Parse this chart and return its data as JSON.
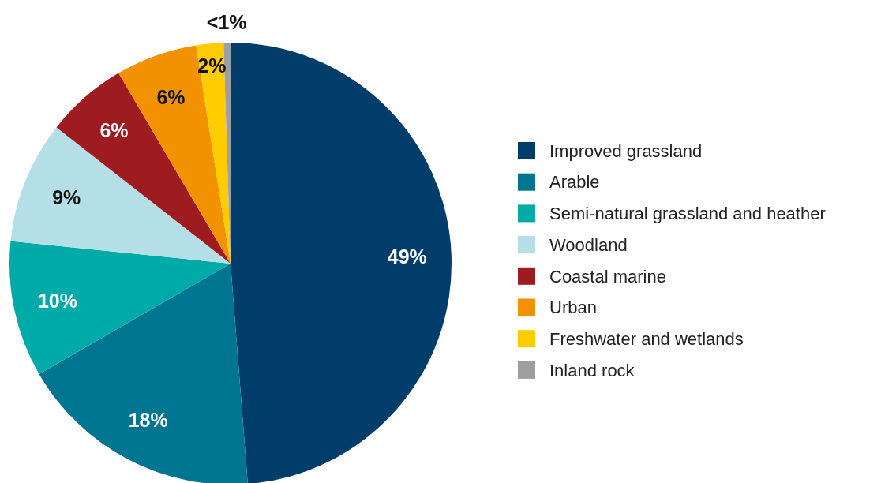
{
  "chart_data": {
    "type": "pie",
    "categories": [
      "Improved grassland",
      "Arable",
      "Semi-natural grassland and heather",
      "Woodland",
      "Coastal marine",
      "Urban",
      "Freshwater and wetlands",
      "Inland rock"
    ],
    "values": [
      49,
      18,
      10,
      9,
      6,
      6,
      2,
      0.5
    ],
    "value_labels": [
      "49%",
      "18%",
      "10%",
      "9%",
      "6%",
      "6%",
      "2%",
      "<1%"
    ],
    "colors": [
      "#003d6b",
      "#007591",
      "#00aaa9",
      "#b5dfe6",
      "#9e1b20",
      "#f39200",
      "#ffcc00",
      "#9d9fa2"
    ],
    "legend": "right"
  }
}
